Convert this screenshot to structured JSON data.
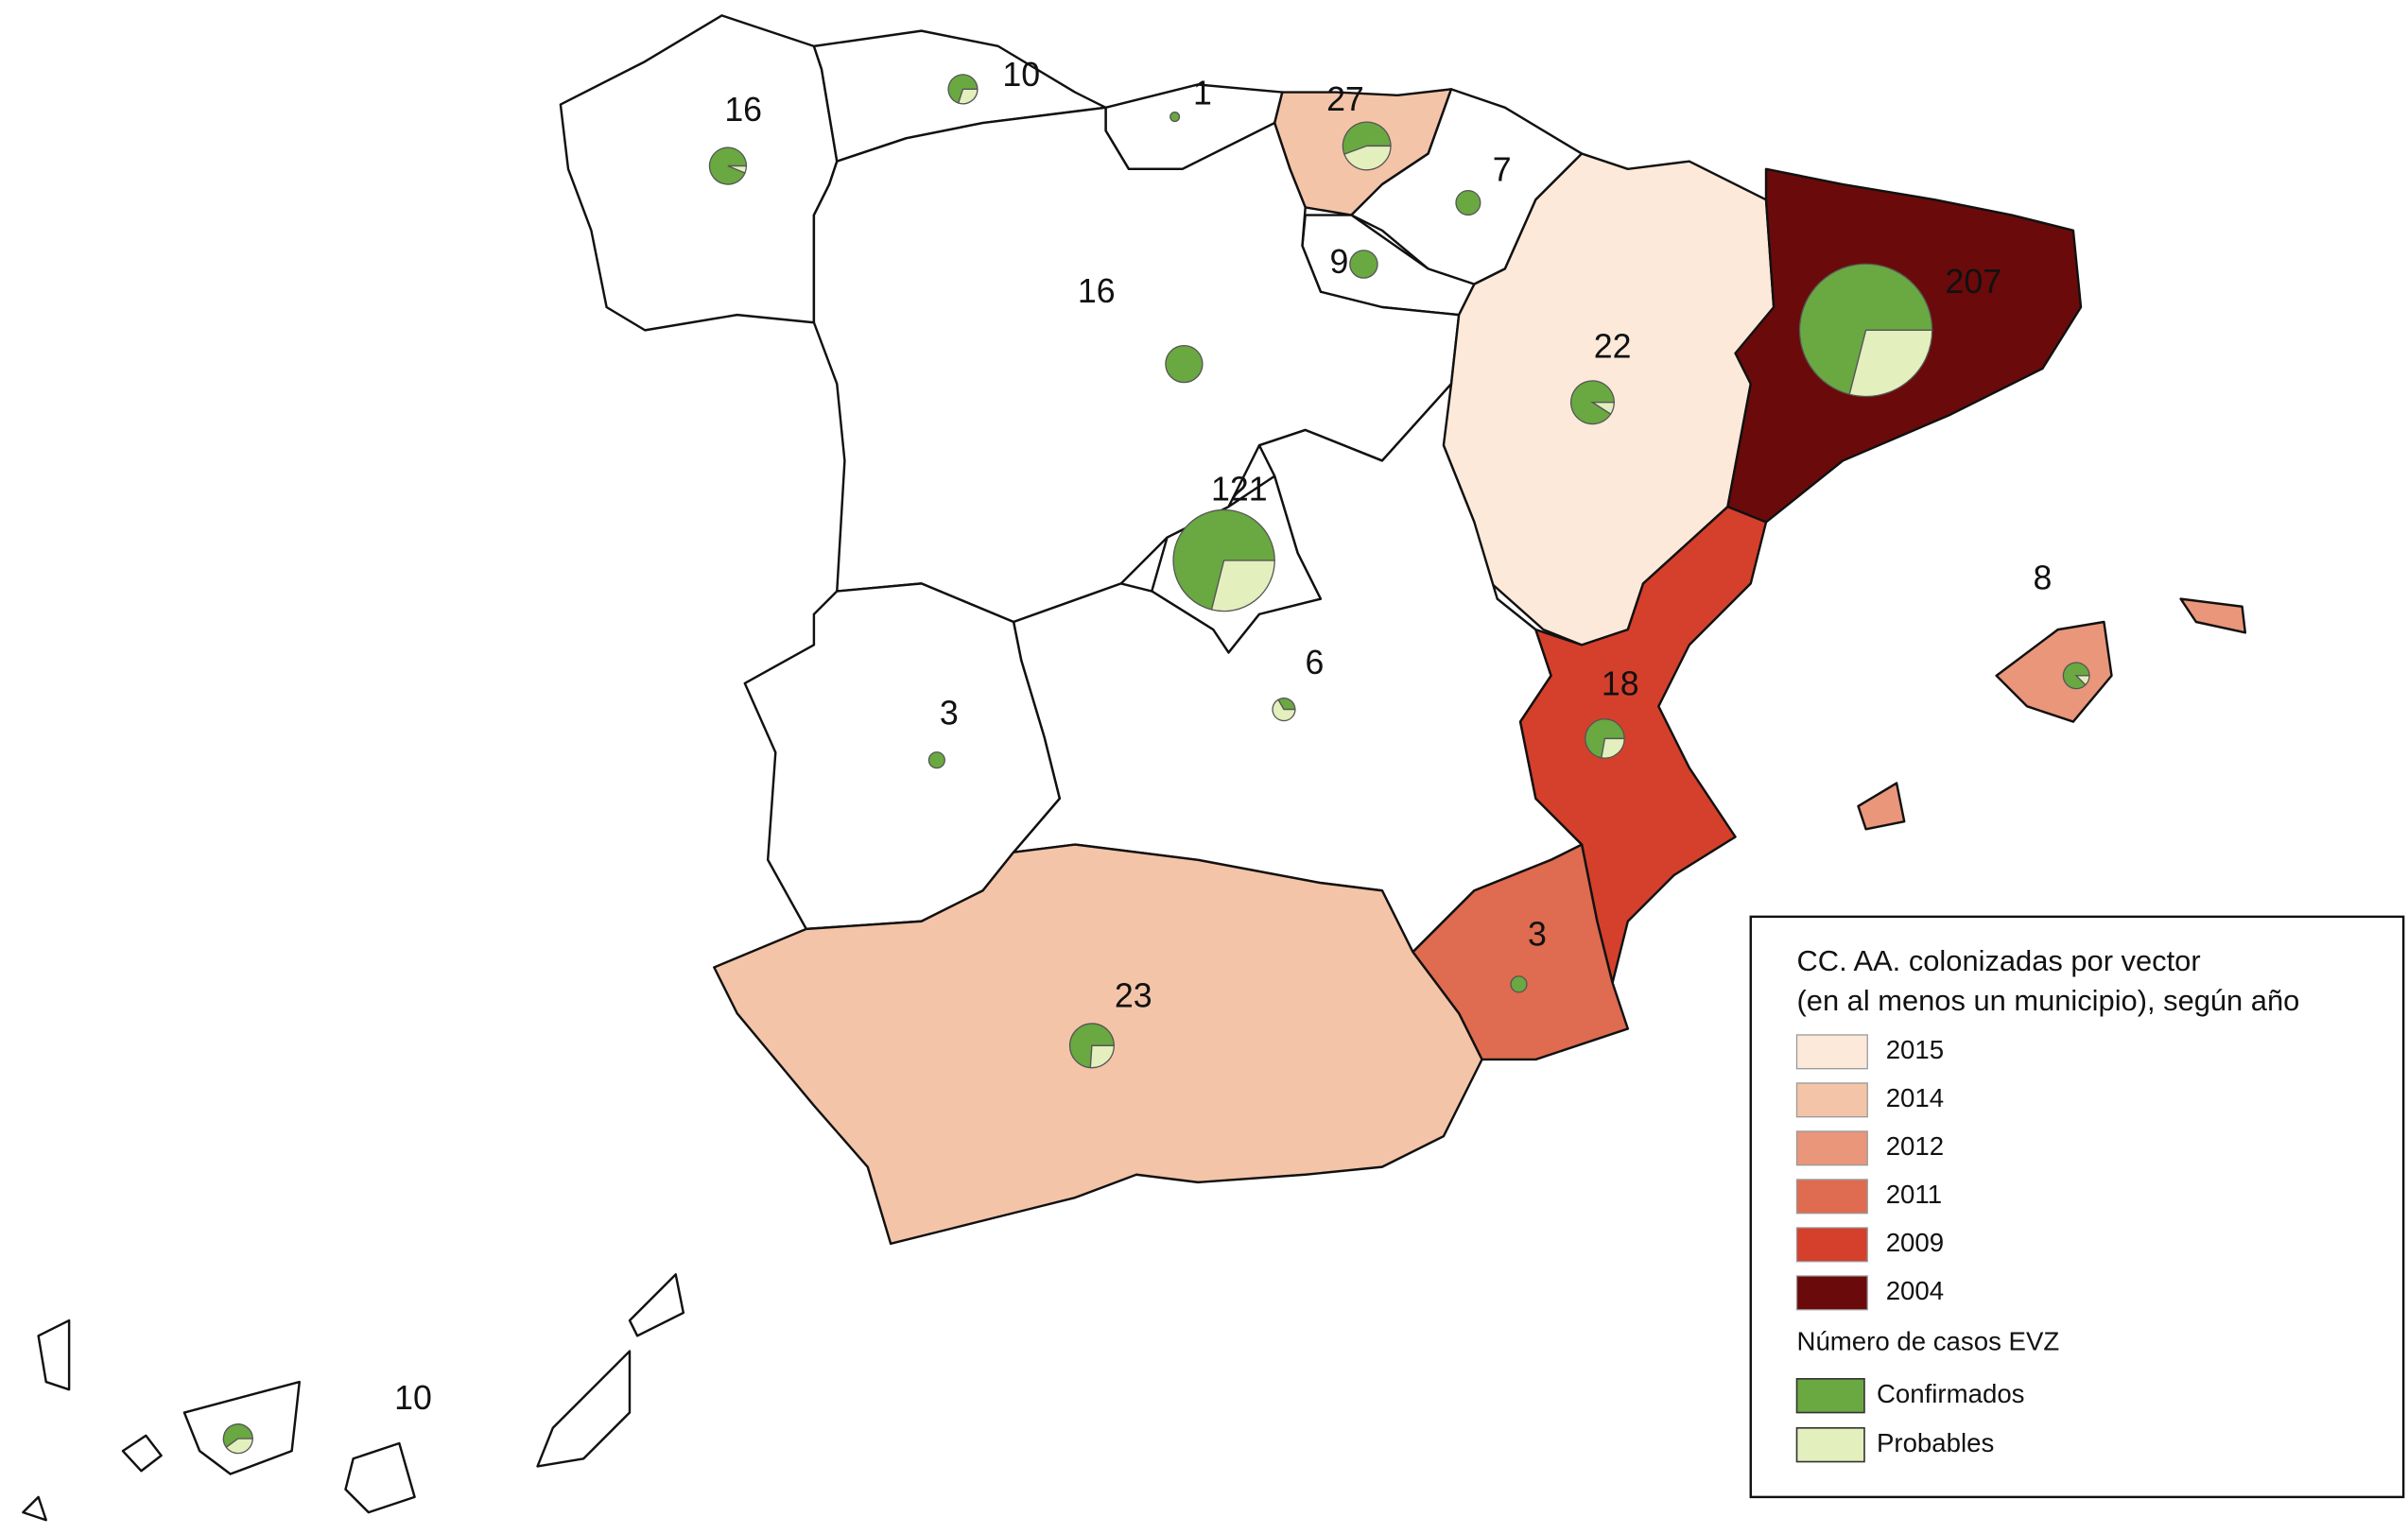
{
  "regions": [
    {
      "cases": 16,
      "probable": 1
    },
    {
      "cases": 10,
      "probable": 3
    },
    {
      "cases": 1,
      "probable": 0
    },
    {
      "cases": 27,
      "probable": 12,
      "colonized": 2014
    },
    {
      "cases": 7,
      "probable": 0
    },
    {
      "cases": 9,
      "probable": 0
    },
    {
      "cases": 16,
      "probable": 0
    },
    {
      "cases": 22,
      "probable": 2,
      "colonized": 2015
    },
    {
      "cases": 207,
      "probable": 60,
      "colonized": 2004
    },
    {
      "cases": 121,
      "probable": 35
    },
    {
      "cases": 6,
      "probable": 4
    },
    {
      "cases": 3,
      "probable": 0
    },
    {
      "cases": 18,
      "probable": 5,
      "colonized": 2009
    },
    {
      "cases": 3,
      "probable": 0,
      "colonized": 2011
    },
    {
      "cases": 23,
      "probable": 6,
      "colonized": 2014
    },
    {
      "cases": 8,
      "probable": 1,
      "colonized": 2012
    },
    {
      "cases": 10,
      "probable": 4
    }
  ],
  "legend": {
    "title_lines": [
      "CC. AA. colonizadas por vector",
      "(en al menos un municipio), según año"
    ],
    "years": [
      {
        "year": 2015,
        "color": "#fde9d9"
      },
      {
        "year": 2014,
        "color": "#f4c4a8"
      },
      {
        "year": 2012,
        "color": "#e9967a"
      },
      {
        "year": 2011,
        "color": "#df6b50"
      },
      {
        "year": 2009,
        "color": "#d4402c"
      },
      {
        "year": 2004,
        "color": "#6b0a0a"
      }
    ],
    "cases_title": "Número de casos EVZ",
    "cases_items": [
      {
        "label": "Confirmados",
        "color": "#6aa842"
      },
      {
        "label": "Probables",
        "color": "#e3efbd"
      }
    ]
  }
}
